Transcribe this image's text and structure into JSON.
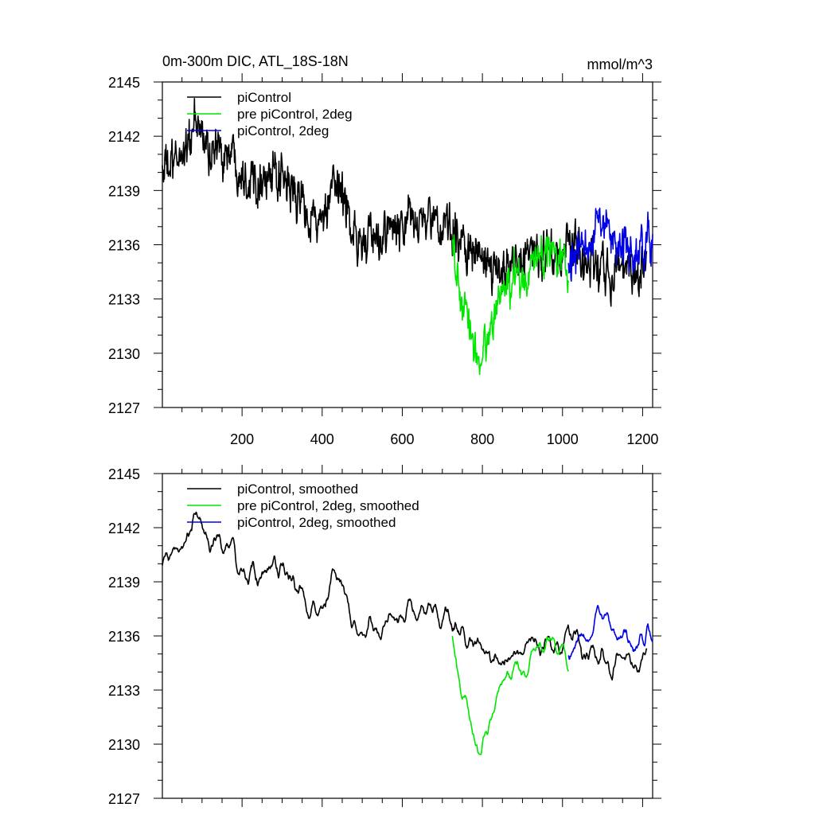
{
  "figure": {
    "title": "0m-300m DIC, ATL_18S-18N",
    "units": "mmol/m^3"
  },
  "chart_data": [
    {
      "type": "line",
      "panel": "top",
      "title": "0m-300m DIC, ATL_18S-18N",
      "units": "mmol/m^3",
      "xlabel": "",
      "ylabel": "",
      "xlim": [
        1,
        1225
      ],
      "ylim": [
        2127,
        2145
      ],
      "xticks": [
        200,
        400,
        600,
        800,
        1000,
        1200
      ],
      "xtick_labels": [
        "200",
        "400",
        "600",
        "800",
        "1000",
        "1200"
      ],
      "yticks": [
        2127,
        2130,
        2133,
        2136,
        2139,
        2142,
        2145
      ],
      "ytick_labels": [
        "2127",
        "2130",
        "2133",
        "2136",
        "2139",
        "2142",
        "2145"
      ],
      "legend": "top-left",
      "series": [
        {
          "name": "piControl",
          "color": "#000000",
          "x_start": 1,
          "x_end": 1210,
          "anchors_x": [
            1,
            30,
            60,
            90,
            120,
            150,
            180,
            210,
            250,
            280,
            320,
            360,
            400,
            420,
            450,
            480,
            500,
            530,
            560,
            600,
            640,
            680,
            700,
            720,
            750,
            780,
            800,
            820,
            840,
            860,
            880,
            900,
            920,
            950,
            980,
            1000,
            1030,
            1060,
            1100,
            1130,
            1160,
            1190,
            1210
          ],
          "anchors_y": [
            2140.2,
            2140.3,
            2141.5,
            2142.6,
            2141.1,
            2141.2,
            2141.0,
            2139.8,
            2139.9,
            2139.5,
            2139.2,
            2138.0,
            2137.0,
            2138.5,
            2139.2,
            2136.5,
            2136.2,
            2136.0,
            2136.7,
            2136.9,
            2137.5,
            2137.2,
            2136.9,
            2136.7,
            2136.2,
            2135.8,
            2135.0,
            2134.5,
            2134.2,
            2135.0,
            2135.2,
            2135.7,
            2135.8,
            2135.2,
            2135.4,
            2135.5,
            2136.0,
            2135.0,
            2134.7,
            2134.3,
            2135.0,
            2134.6,
            2134.8
          ],
          "noise": 1.0,
          "smoothed": false
        },
        {
          "name": "pre piControl, 2deg",
          "color": "#00e600",
          "x_start": 725,
          "x_end": 1015,
          "anchors_x": [
            725,
            740,
            760,
            780,
            795,
            805,
            820,
            840,
            860,
            880,
            900,
            920,
            940,
            960,
            980,
            1000,
            1015
          ],
          "anchors_y": [
            2136.6,
            2133.2,
            2132.0,
            2130.5,
            2129.6,
            2130.0,
            2131.5,
            2133.0,
            2133.6,
            2134.0,
            2134.2,
            2134.8,
            2135.2,
            2135.6,
            2136.0,
            2135.3,
            2134.8
          ],
          "noise": 0.9,
          "smoothed": false
        },
        {
          "name": "piControl, 2deg",
          "color": "#0000e6",
          "x_start": 1015,
          "x_end": 1225,
          "anchors_x": [
            1015,
            1040,
            1070,
            1090,
            1110,
            1130,
            1150,
            1170,
            1190,
            1210,
            1225
          ],
          "anchors_y": [
            2134.6,
            2135.4,
            2136.0,
            2137.6,
            2137.6,
            2135.7,
            2136.0,
            2135.5,
            2135.0,
            2136.5,
            2136.0
          ],
          "noise": 0.9,
          "smoothed": false
        }
      ]
    },
    {
      "type": "line",
      "panel": "bottom",
      "title": "",
      "xlabel": "",
      "ylabel": "",
      "xlim": [
        1,
        1225
      ],
      "ylim": [
        2127,
        2145
      ],
      "xticks": [
        200,
        400,
        600,
        800,
        1000,
        1200
      ],
      "xtick_labels": [],
      "yticks": [
        2127,
        2130,
        2133,
        2136,
        2139,
        2142,
        2145
      ],
      "ytick_labels": [
        "2127",
        "2130",
        "2133",
        "2136",
        "2139",
        "2142",
        "2145"
      ],
      "legend": "top-left",
      "series": [
        {
          "name": "piControl, smoothed",
          "color": "#000000",
          "x_start": 1,
          "x_end": 1210,
          "anchors_x": [
            1,
            30,
            60,
            90,
            120,
            150,
            180,
            210,
            250,
            280,
            320,
            360,
            400,
            420,
            450,
            480,
            500,
            530,
            560,
            600,
            640,
            680,
            700,
            720,
            750,
            780,
            800,
            820,
            840,
            860,
            880,
            900,
            920,
            950,
            980,
            1000,
            1030,
            1060,
            1100,
            1130,
            1160,
            1190,
            1210
          ],
          "anchors_y": [
            2140.2,
            2140.3,
            2141.5,
            2142.6,
            2141.1,
            2141.2,
            2141.0,
            2139.8,
            2139.9,
            2139.5,
            2139.2,
            2138.0,
            2137.0,
            2138.5,
            2139.2,
            2136.5,
            2136.2,
            2136.0,
            2136.7,
            2136.9,
            2137.5,
            2137.2,
            2136.9,
            2136.7,
            2136.2,
            2135.8,
            2135.0,
            2134.5,
            2134.2,
            2135.0,
            2135.2,
            2135.7,
            2135.8,
            2135.2,
            2135.4,
            2135.5,
            2136.0,
            2135.0,
            2134.7,
            2134.3,
            2135.0,
            2134.6,
            2134.8
          ],
          "noise": 1.0,
          "smoothed": true
        },
        {
          "name": "pre piControl, 2deg, smoothed",
          "color": "#00e600",
          "x_start": 725,
          "x_end": 1015,
          "anchors_x": [
            725,
            740,
            760,
            780,
            795,
            805,
            820,
            840,
            860,
            880,
            900,
            920,
            940,
            960,
            980,
            1000,
            1015
          ],
          "anchors_y": [
            2136.6,
            2133.2,
            2132.0,
            2130.5,
            2129.6,
            2130.0,
            2131.5,
            2133.0,
            2133.6,
            2134.0,
            2134.2,
            2134.8,
            2135.2,
            2135.6,
            2136.0,
            2135.3,
            2134.8
          ],
          "noise": 0.9,
          "smoothed": true
        },
        {
          "name": "piControl, 2deg, smoothed",
          "color": "#0000e6",
          "x_start": 1015,
          "x_end": 1225,
          "anchors_x": [
            1015,
            1040,
            1070,
            1090,
            1110,
            1130,
            1150,
            1170,
            1190,
            1210,
            1225
          ],
          "anchors_y": [
            2134.6,
            2135.4,
            2136.0,
            2137.6,
            2137.6,
            2135.7,
            2136.0,
            2135.5,
            2135.0,
            2136.5,
            2136.0
          ],
          "noise": 0.9,
          "smoothed": true
        }
      ]
    }
  ]
}
